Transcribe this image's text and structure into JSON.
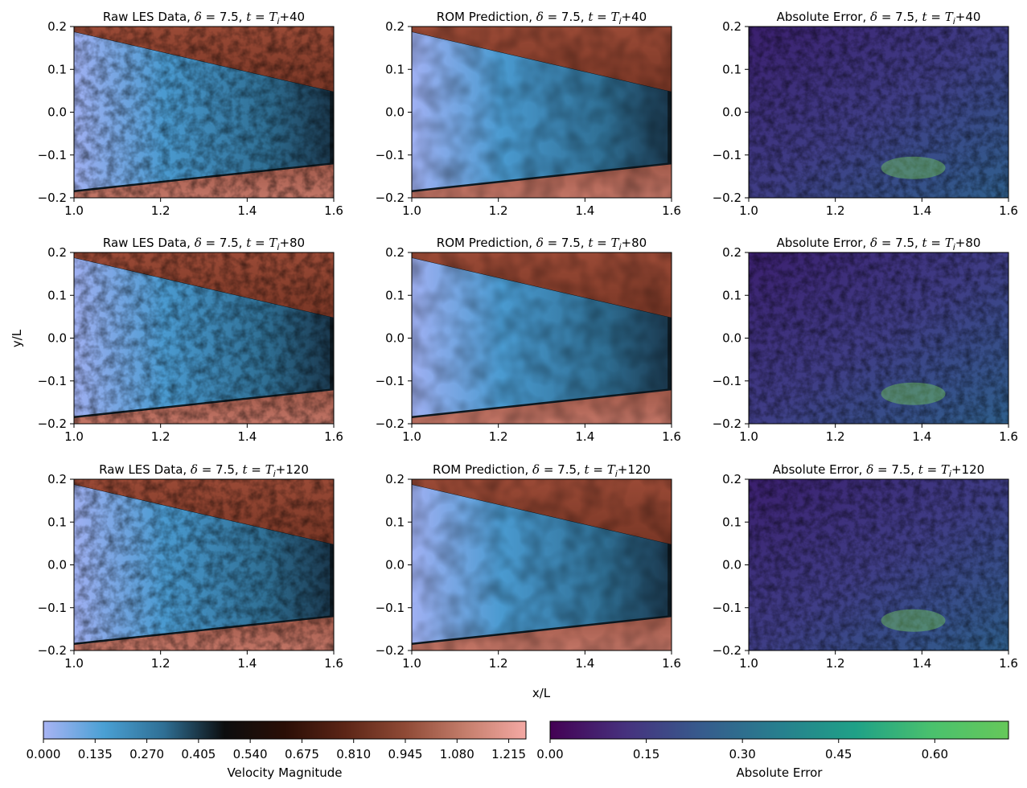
{
  "figure": {
    "shared_xlabel": "x/L",
    "shared_ylabel": "y/L"
  },
  "colorbars": [
    {
      "label": "Velocity Magnitude",
      "cmap": "vanimo",
      "ticks": [
        "0.000",
        "0.135",
        "0.270",
        "0.405",
        "0.540",
        "0.675",
        "0.810",
        "0.945",
        "1.080",
        "1.215"
      ],
      "tick_values": [
        0,
        0.135,
        0.27,
        0.405,
        0.54,
        0.675,
        0.81,
        0.945,
        1.08,
        1.215
      ],
      "range": [
        0,
        1.26
      ],
      "stops": [
        "#a8b4f4",
        "#4aa0d4",
        "#2f6f94",
        "#0c0d0e",
        "#2a0e06",
        "#5c2516",
        "#8f4a36",
        "#c57e6c",
        "#f4a9a4"
      ]
    },
    {
      "label": "Absolute Error",
      "cmap": "viridis",
      "ticks": [
        "0.00",
        "0.15",
        "0.30",
        "0.45",
        "0.60"
      ],
      "tick_values": [
        0,
        0.15,
        0.3,
        0.45,
        0.6
      ],
      "range": [
        0,
        0.715
      ],
      "stops": [
        "#440154",
        "#46327e",
        "#365c8d",
        "#277f8e",
        "#1fa187",
        "#4ac16d",
        "#66c85a"
      ]
    }
  ],
  "chart_data": [
    {
      "type": "heatmap",
      "panel": "raw",
      "title_prefix": "Raw LES Data, ",
      "delta": "7.5",
      "time_offset": "+40",
      "xlim": [
        1.0,
        1.6
      ],
      "ylim": [
        -0.2,
        0.2
      ],
      "xticks": [
        "1.0",
        "1.2",
        "1.4",
        "1.6"
      ],
      "xtick_values": [
        1.0,
        1.2,
        1.4,
        1.6
      ],
      "yticks": [
        "0.2",
        "0.1",
        "0.0",
        "−0.1",
        "−0.2"
      ],
      "ytick_values": [
        0.2,
        0.1,
        0.0,
        -0.1,
        -0.2
      ],
      "colorbar": "Velocity Magnitude"
    },
    {
      "type": "heatmap",
      "panel": "rom",
      "title_prefix": "ROM Prediction, ",
      "delta": "7.5",
      "time_offset": "+40",
      "xlim": [
        1.0,
        1.6
      ],
      "ylim": [
        -0.2,
        0.2
      ],
      "xticks": [
        "1.0",
        "1.2",
        "1.4",
        "1.6"
      ],
      "xtick_values": [
        1.0,
        1.2,
        1.4,
        1.6
      ],
      "yticks": [
        "0.2",
        "0.1",
        "0.0",
        "−0.1",
        "−0.2"
      ],
      "ytick_values": [
        0.2,
        0.1,
        0.0,
        -0.1,
        -0.2
      ],
      "colorbar": "Velocity Magnitude"
    },
    {
      "type": "heatmap",
      "panel": "err",
      "title_prefix": "Absolute Error, ",
      "delta": "7.5",
      "time_offset": "+40",
      "xlim": [
        1.0,
        1.6
      ],
      "ylim": [
        -0.2,
        0.2
      ],
      "xticks": [
        "1.0",
        "1.2",
        "1.4",
        "1.6"
      ],
      "xtick_values": [
        1.0,
        1.2,
        1.4,
        1.6
      ],
      "yticks": [
        "0.2",
        "0.1",
        "0.0",
        "−0.1",
        "−0.2"
      ],
      "ytick_values": [
        0.2,
        0.1,
        0.0,
        -0.1,
        -0.2
      ],
      "colorbar": "Absolute Error"
    },
    {
      "type": "heatmap",
      "panel": "raw",
      "title_prefix": "Raw LES Data, ",
      "delta": "7.5",
      "time_offset": "+80",
      "xlim": [
        1.0,
        1.6
      ],
      "ylim": [
        -0.2,
        0.2
      ],
      "xticks": [
        "1.0",
        "1.2",
        "1.4",
        "1.6"
      ],
      "xtick_values": [
        1.0,
        1.2,
        1.4,
        1.6
      ],
      "yticks": [
        "0.2",
        "0.1",
        "0.0",
        "−0.1",
        "−0.2"
      ],
      "ytick_values": [
        0.2,
        0.1,
        0.0,
        -0.1,
        -0.2
      ],
      "colorbar": "Velocity Magnitude"
    },
    {
      "type": "heatmap",
      "panel": "rom",
      "title_prefix": "ROM Prediction, ",
      "delta": "7.5",
      "time_offset": "+80",
      "xlim": [
        1.0,
        1.6
      ],
      "ylim": [
        -0.2,
        0.2
      ],
      "xticks": [
        "1.0",
        "1.2",
        "1.4",
        "1.6"
      ],
      "xtick_values": [
        1.0,
        1.2,
        1.4,
        1.6
      ],
      "yticks": [
        "0.2",
        "0.1",
        "0.0",
        "−0.1",
        "−0.2"
      ],
      "ytick_values": [
        0.2,
        0.1,
        0.0,
        -0.1,
        -0.2
      ],
      "colorbar": "Velocity Magnitude"
    },
    {
      "type": "heatmap",
      "panel": "err",
      "title_prefix": "Absolute Error, ",
      "delta": "7.5",
      "time_offset": "+80",
      "xlim": [
        1.0,
        1.6
      ],
      "ylim": [
        -0.2,
        0.2
      ],
      "xticks": [
        "1.0",
        "1.2",
        "1.4",
        "1.6"
      ],
      "xtick_values": [
        1.0,
        1.2,
        1.4,
        1.6
      ],
      "yticks": [
        "0.2",
        "0.1",
        "0.0",
        "−0.1",
        "−0.2"
      ],
      "ytick_values": [
        0.2,
        0.1,
        0.0,
        -0.1,
        -0.2
      ],
      "colorbar": "Absolute Error"
    },
    {
      "type": "heatmap",
      "panel": "raw",
      "title_prefix": "Raw LES Data, ",
      "delta": "7.5",
      "time_offset": "+120",
      "xlim": [
        1.0,
        1.6
      ],
      "ylim": [
        -0.2,
        0.2
      ],
      "xticks": [
        "1.0",
        "1.2",
        "1.4",
        "1.6"
      ],
      "xtick_values": [
        1.0,
        1.2,
        1.4,
        1.6
      ],
      "yticks": [
        "0.2",
        "0.1",
        "0.0",
        "−0.1",
        "−0.2"
      ],
      "ytick_values": [
        0.2,
        0.1,
        0.0,
        -0.1,
        -0.2
      ],
      "colorbar": "Velocity Magnitude"
    },
    {
      "type": "heatmap",
      "panel": "rom",
      "title_prefix": "ROM Prediction, ",
      "delta": "7.5",
      "time_offset": "+120",
      "xlim": [
        1.0,
        1.6
      ],
      "ylim": [
        -0.2,
        0.2
      ],
      "xticks": [
        "1.0",
        "1.2",
        "1.4",
        "1.6"
      ],
      "xtick_values": [
        1.0,
        1.2,
        1.4,
        1.6
      ],
      "yticks": [
        "0.2",
        "0.1",
        "0.0",
        "−0.1",
        "−0.2"
      ],
      "ytick_values": [
        0.2,
        0.1,
        0.0,
        -0.1,
        -0.2
      ],
      "colorbar": "Velocity Magnitude"
    },
    {
      "type": "heatmap",
      "panel": "err",
      "title_prefix": "Absolute Error, ",
      "delta": "7.5",
      "time_offset": "+120",
      "xlim": [
        1.0,
        1.6
      ],
      "ylim": [
        -0.2,
        0.2
      ],
      "xticks": [
        "1.0",
        "1.2",
        "1.4",
        "1.6"
      ],
      "xtick_values": [
        1.0,
        1.2,
        1.4,
        1.6
      ],
      "yticks": [
        "0.2",
        "0.1",
        "0.0",
        "−0.1",
        "−0.2"
      ],
      "ytick_values": [
        0.2,
        0.1,
        0.0,
        -0.1,
        -0.2
      ],
      "colorbar": "Absolute Error"
    }
  ]
}
